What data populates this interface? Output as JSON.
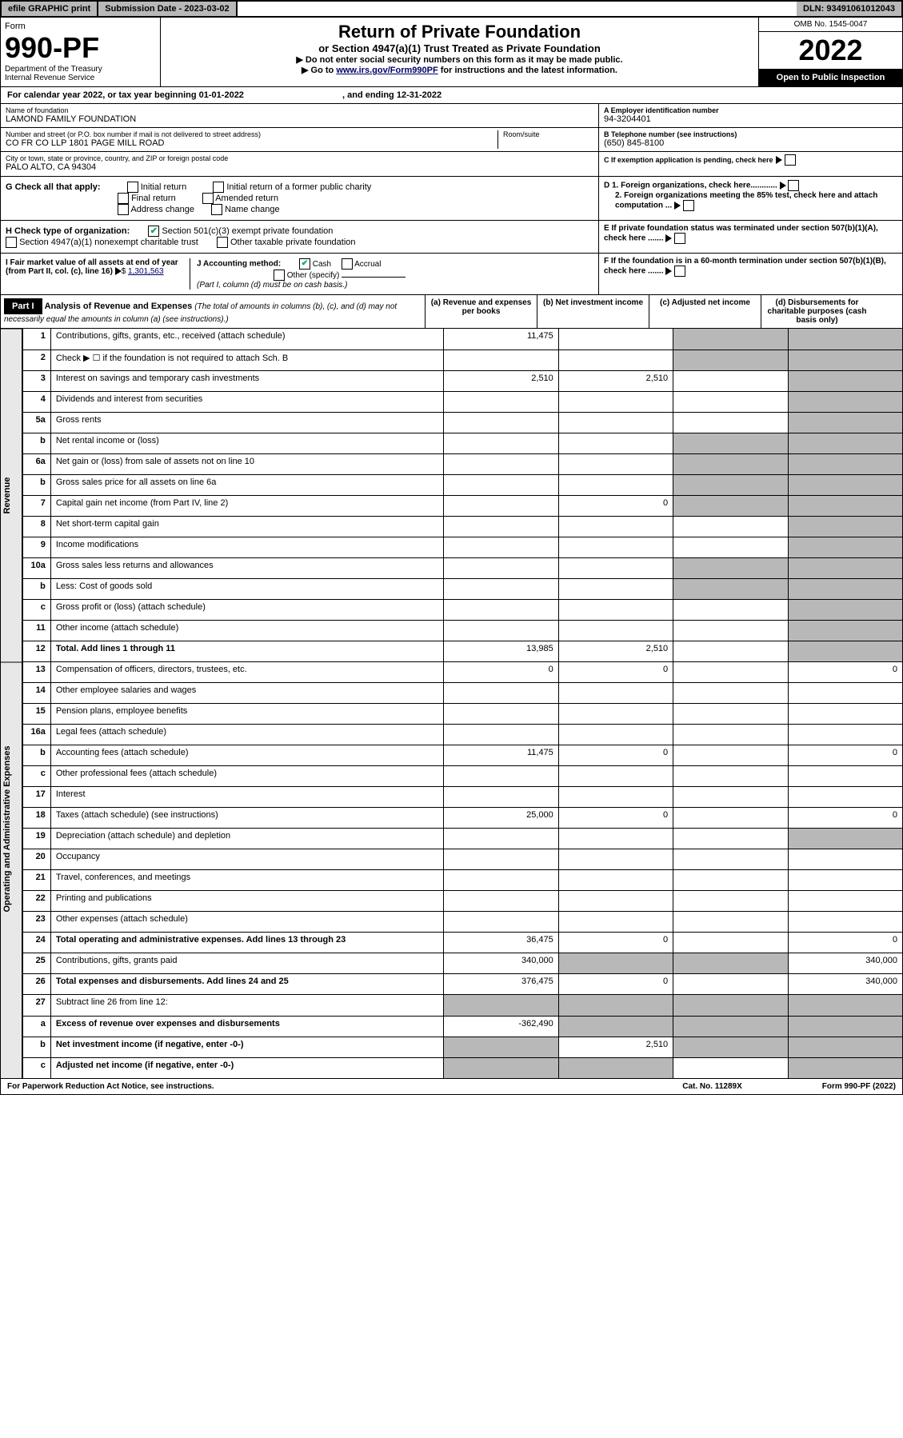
{
  "topbar": {
    "efile": "efile GRAPHIC print",
    "subdate_label": "Submission Date - ",
    "subdate": "2023-03-02",
    "dln_label": "DLN: ",
    "dln": "93491061012043"
  },
  "header": {
    "form_label": "Form",
    "form_num": "990-PF",
    "dept": "Department of the Treasury\nInternal Revenue Service",
    "title": "Return of Private Foundation",
    "subtitle": "or Section 4947(a)(1) Trust Treated as Private Foundation",
    "instr1": "▶ Do not enter social security numbers on this form as it may be made public.",
    "instr2_pre": "▶ Go to ",
    "instr2_link": "www.irs.gov/Form990PF",
    "instr2_post": " for instructions and the latest information.",
    "omb": "OMB No. 1545-0047",
    "year": "2022",
    "open": "Open to Public Inspection"
  },
  "calyear": {
    "pre": "For calendar year 2022, or tax year beginning ",
    "begin": "01-01-2022",
    "mid": " , and ending ",
    "end": "12-31-2022"
  },
  "name": {
    "label": "Name of foundation",
    "value": "LAMOND FAMILY FOUNDATION"
  },
  "ein": {
    "label": "A Employer identification number",
    "value": "94-3204401"
  },
  "addr": {
    "label": "Number and street (or P.O. box number if mail is not delivered to street address)",
    "value": "CO FR CO LLP 1801 PAGE MILL ROAD",
    "room_label": "Room/suite"
  },
  "phone": {
    "label": "B Telephone number (see instructions)",
    "value": "(650) 845-8100"
  },
  "city": {
    "label": "City or town, state or province, country, and ZIP or foreign postal code",
    "value": "PALO ALTO, CA  94304"
  },
  "c_label": "C If exemption application is pending, check here",
  "g": {
    "label": "G Check all that apply:",
    "opts": [
      "Initial return",
      "Final return",
      "Address change",
      "Initial return of a former public charity",
      "Amended return",
      "Name change"
    ]
  },
  "d": {
    "d1": "D 1. Foreign organizations, check here............",
    "d2": "2. Foreign organizations meeting the 85% test, check here and attach computation ..."
  },
  "h": {
    "label": "H Check type of organization:",
    "opt1": "Section 501(c)(3) exempt private foundation",
    "opt2": "Section 4947(a)(1) nonexempt charitable trust",
    "opt3": "Other taxable private foundation"
  },
  "e_label": "E If private foundation status was terminated under section 507(b)(1)(A), check here .......",
  "i": {
    "label": "I Fair market value of all assets at end of year (from Part II, col. (c), line 16)",
    "value": "1,301,563"
  },
  "j": {
    "label": "J Accounting method:",
    "cash": "Cash",
    "accrual": "Accrual",
    "other": "Other (specify)",
    "note": "(Part I, column (d) must be on cash basis.)"
  },
  "f_label": "F If the foundation is in a 60-month termination under section 507(b)(1)(B), check here .......",
  "part1": {
    "hdr": "Part I",
    "title": "Analysis of Revenue and Expenses",
    "note": "(The total of amounts in columns (b), (c), and (d) may not necessarily equal the amounts in column (a) (see instructions).)",
    "cols": [
      "(a) Revenue and expenses per books",
      "(b) Net investment income",
      "(c) Adjusted net income",
      "(d) Disbursements for charitable purposes (cash basis only)"
    ]
  },
  "vert": {
    "rev": "Revenue",
    "exp": "Operating and Administrative Expenses"
  },
  "rows": {
    "r1": {
      "n": "1",
      "d": "Contributions, gifts, grants, etc., received (attach schedule)",
      "a": "11,475"
    },
    "r2": {
      "n": "2",
      "d": "Check ▶ ☐ if the foundation is not required to attach Sch. B"
    },
    "r3": {
      "n": "3",
      "d": "Interest on savings and temporary cash investments",
      "a": "2,510",
      "b": "2,510"
    },
    "r4": {
      "n": "4",
      "d": "Dividends and interest from securities"
    },
    "r5a": {
      "n": "5a",
      "d": "Gross rents"
    },
    "r5b": {
      "n": "b",
      "d": "Net rental income or (loss)"
    },
    "r6a": {
      "n": "6a",
      "d": "Net gain or (loss) from sale of assets not on line 10"
    },
    "r6b": {
      "n": "b",
      "d": "Gross sales price for all assets on line 6a"
    },
    "r7": {
      "n": "7",
      "d": "Capital gain net income (from Part IV, line 2)",
      "b": "0"
    },
    "r8": {
      "n": "8",
      "d": "Net short-term capital gain"
    },
    "r9": {
      "n": "9",
      "d": "Income modifications"
    },
    "r10a": {
      "n": "10a",
      "d": "Gross sales less returns and allowances"
    },
    "r10b": {
      "n": "b",
      "d": "Less: Cost of goods sold"
    },
    "r10c": {
      "n": "c",
      "d": "Gross profit or (loss) (attach schedule)"
    },
    "r11": {
      "n": "11",
      "d": "Other income (attach schedule)"
    },
    "r12": {
      "n": "12",
      "d": "Total. Add lines 1 through 11",
      "a": "13,985",
      "b": "2,510",
      "bold": true
    },
    "r13": {
      "n": "13",
      "d": "Compensation of officers, directors, trustees, etc.",
      "a": "0",
      "b": "0",
      "dd": "0"
    },
    "r14": {
      "n": "14",
      "d": "Other employee salaries and wages"
    },
    "r15": {
      "n": "15",
      "d": "Pension plans, employee benefits"
    },
    "r16a": {
      "n": "16a",
      "d": "Legal fees (attach schedule)"
    },
    "r16b": {
      "n": "b",
      "d": "Accounting fees (attach schedule)",
      "a": "11,475",
      "b": "0",
      "dd": "0"
    },
    "r16c": {
      "n": "c",
      "d": "Other professional fees (attach schedule)"
    },
    "r17": {
      "n": "17",
      "d": "Interest"
    },
    "r18": {
      "n": "18",
      "d": "Taxes (attach schedule) (see instructions)",
      "a": "25,000",
      "b": "0",
      "dd": "0"
    },
    "r19": {
      "n": "19",
      "d": "Depreciation (attach schedule) and depletion"
    },
    "r20": {
      "n": "20",
      "d": "Occupancy"
    },
    "r21": {
      "n": "21",
      "d": "Travel, conferences, and meetings"
    },
    "r22": {
      "n": "22",
      "d": "Printing and publications"
    },
    "r23": {
      "n": "23",
      "d": "Other expenses (attach schedule)"
    },
    "r24": {
      "n": "24",
      "d": "Total operating and administrative expenses. Add lines 13 through 23",
      "a": "36,475",
      "b": "0",
      "dd": "0",
      "bold": true
    },
    "r25": {
      "n": "25",
      "d": "Contributions, gifts, grants paid",
      "a": "340,000",
      "dd": "340,000"
    },
    "r26": {
      "n": "26",
      "d": "Total expenses and disbursements. Add lines 24 and 25",
      "a": "376,475",
      "b": "0",
      "dd": "340,000",
      "bold": true
    },
    "r27": {
      "n": "27",
      "d": "Subtract line 26 from line 12:"
    },
    "r27a": {
      "n": "a",
      "d": "Excess of revenue over expenses and disbursements",
      "a": "-362,490",
      "bold": true
    },
    "r27b": {
      "n": "b",
      "d": "Net investment income (if negative, enter -0-)",
      "b": "2,510",
      "bold": true
    },
    "r27c": {
      "n": "c",
      "d": "Adjusted net income (if negative, enter -0-)",
      "bold": true
    }
  },
  "footer": {
    "left": "For Paperwork Reduction Act Notice, see instructions.",
    "mid": "Cat. No. 11289X",
    "right": "Form 990-PF (2022)"
  }
}
